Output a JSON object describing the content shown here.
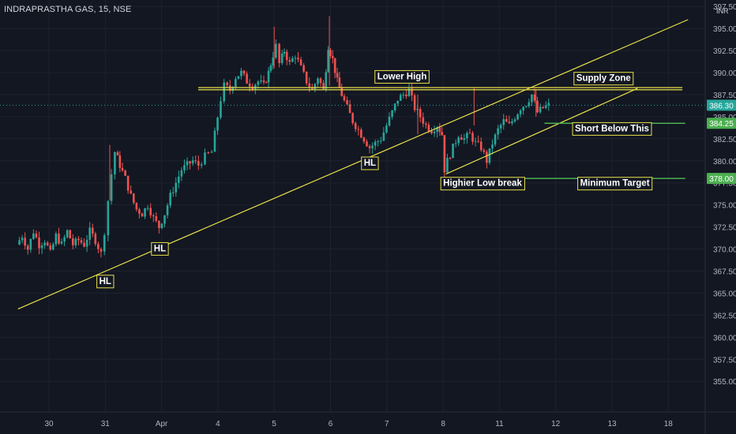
{
  "chart_title": "INDRAPRASTHA GAS, 15, NSE",
  "currency": "INR",
  "chart_data": {
    "type": "candlestick",
    "y_axis": {
      "min": 353.5,
      "max": 397.6,
      "ticks": [
        "355.00",
        "357.50",
        "360.00",
        "362.50",
        "365.00",
        "367.50",
        "370.00",
        "372.50",
        "375.00",
        "377.50",
        "380.00",
        "382.50",
        "385.00",
        "387.50",
        "390.00",
        "392.50",
        "395.00",
        "397.50"
      ]
    },
    "x_axis": {
      "ticks": [
        {
          "label": "30",
          "t": 0.5
        },
        {
          "label": "31",
          "t": 1.5
        },
        {
          "label": "Apr",
          "t": 2.5
        },
        {
          "label": "4",
          "t": 3.5
        },
        {
          "label": "5",
          "t": 4.5
        },
        {
          "label": "6",
          "t": 5.5
        },
        {
          "label": "7",
          "t": 6.5
        },
        {
          "label": "8",
          "t": 7.5
        },
        {
          "label": "11",
          "t": 8.5
        },
        {
          "label": "12",
          "t": 9.5
        },
        {
          "label": "13",
          "t": 10.5
        },
        {
          "label": "18",
          "t": 11.5
        }
      ]
    },
    "up_color": "#26a69a",
    "down_color": "#ef5350",
    "price_badges": [
      {
        "value": 386.3,
        "label": "386.30",
        "color": "#26a69a"
      },
      {
        "value": 384.25,
        "label": "384.25",
        "color": "#4caf50"
      },
      {
        "value": 378.0,
        "label": "378.00",
        "color": "#4caf50"
      }
    ],
    "close_price": 386.3,
    "candle_path": [
      [
        -0.05,
        370.5
      ],
      [
        0.05,
        371.5
      ],
      [
        0.15,
        370
      ],
      [
        0.25,
        372
      ],
      [
        0.35,
        370.5
      ],
      [
        0.45,
        371
      ],
      [
        0.55,
        369.5
      ],
      [
        0.65,
        371.5
      ],
      [
        0.75,
        370.5
      ],
      [
        0.85,
        372
      ],
      [
        0.95,
        370.5
      ],
      [
        1.05,
        371
      ],
      [
        1.15,
        370.5
      ],
      [
        1.25,
        372
      ],
      [
        1.35,
        371
      ],
      [
        1.45,
        369.5
      ],
      [
        1.52,
        372
      ],
      [
        1.58,
        375.5
      ],
      [
        1.64,
        378.5
      ],
      [
        1.7,
        381
      ],
      [
        1.78,
        379.5
      ],
      [
        1.88,
        378
      ],
      [
        1.98,
        376
      ],
      [
        2.08,
        374.5
      ],
      [
        2.18,
        374
      ],
      [
        2.28,
        375
      ],
      [
        2.38,
        373.5
      ],
      [
        2.48,
        372.5
      ],
      [
        2.58,
        374
      ],
      [
        2.68,
        376
      ],
      [
        2.78,
        377.5
      ],
      [
        2.88,
        379
      ],
      [
        2.98,
        379.5
      ],
      [
        3.08,
        380
      ],
      [
        3.18,
        379.5
      ],
      [
        3.3,
        380.5
      ],
      [
        3.42,
        381
      ],
      [
        3.52,
        385
      ],
      [
        3.58,
        387
      ],
      [
        3.64,
        388.5
      ],
      [
        3.74,
        388
      ],
      [
        3.84,
        389.5
      ],
      [
        3.94,
        390
      ],
      [
        4.04,
        389
      ],
      [
        4.14,
        388.5
      ],
      [
        4.24,
        389
      ],
      [
        4.34,
        388.5
      ],
      [
        4.42,
        390
      ],
      [
        4.5,
        392
      ],
      [
        4.56,
        393
      ],
      [
        4.62,
        391
      ],
      [
        4.7,
        392.5
      ],
      [
        4.8,
        391
      ],
      [
        4.9,
        392
      ],
      [
        5.0,
        390.5
      ],
      [
        5.1,
        389
      ],
      [
        5.2,
        388
      ],
      [
        5.3,
        389.5
      ],
      [
        5.4,
        388
      ],
      [
        5.48,
        393
      ],
      [
        5.56,
        391.5
      ],
      [
        5.64,
        389
      ],
      [
        5.72,
        387.5
      ],
      [
        5.82,
        386
      ],
      [
        5.92,
        384.5
      ],
      [
        6.02,
        383.5
      ],
      [
        6.12,
        382.5
      ],
      [
        6.22,
        381.5
      ],
      [
        6.32,
        382
      ],
      [
        6.42,
        382.5
      ],
      [
        6.52,
        384
      ],
      [
        6.62,
        385.5
      ],
      [
        6.72,
        387
      ],
      [
        6.82,
        387.5
      ],
      [
        6.92,
        388
      ],
      [
        7.02,
        386
      ],
      [
        7.12,
        385
      ],
      [
        7.22,
        384
      ],
      [
        7.32,
        383.5
      ],
      [
        7.42,
        384
      ],
      [
        7.5,
        383
      ],
      [
        7.55,
        379
      ],
      [
        7.6,
        380
      ],
      [
        7.7,
        381.5
      ],
      [
        7.8,
        383
      ],
      [
        7.9,
        382.5
      ],
      [
        8.0,
        383
      ],
      [
        8.1,
        382
      ],
      [
        8.2,
        381.5
      ],
      [
        8.3,
        380
      ],
      [
        8.4,
        382
      ],
      [
        8.5,
        383.5
      ],
      [
        8.6,
        384.5
      ],
      [
        8.7,
        384
      ],
      [
        8.8,
        385
      ],
      [
        8.9,
        386
      ],
      [
        9.0,
        386.5
      ],
      [
        9.1,
        387.5
      ],
      [
        9.2,
        385.5
      ],
      [
        9.3,
        386
      ],
      [
        9.4,
        386.3
      ]
    ],
    "drawings": {
      "trendlines": [
        {
          "from": [
            -0.05,
            363.2
          ],
          "to": [
            11.85,
            396.0
          ],
          "color": "#e8e04a"
        },
        {
          "from": [
            7.55,
            378.5
          ],
          "to": [
            10.95,
            388.2
          ],
          "color": "#e8e04a"
        },
        {
          "from": [
            3.15,
            388.3
          ],
          "to": [
            11.75,
            388.3
          ],
          "color": "#e8e04a"
        },
        {
          "from": [
            3.15,
            388.05
          ],
          "to": [
            11.75,
            388.05
          ],
          "color": "#e8e04a"
        }
      ],
      "hlines": [
        {
          "from": [
            9.3,
            384.25
          ],
          "to": [
            11.8,
            384.25
          ],
          "color": "#4caf50"
        },
        {
          "from": [
            8.0,
            378.0
          ],
          "to": [
            11.8,
            378.0
          ],
          "color": "#4caf50"
        }
      ]
    },
    "annotations": [
      {
        "text": "HL",
        "t": 1.5,
        "price": 366.4
      },
      {
        "text": "HL",
        "t": 2.47,
        "price": 370.1
      },
      {
        "text": "HL",
        "t": 6.2,
        "price": 379.8
      },
      {
        "text": "Lower High",
        "t": 6.77,
        "price": 389.6
      },
      {
        "text": "Supply Zone",
        "t": 10.35,
        "price": 389.4
      },
      {
        "text": "Short Below This",
        "t": 10.5,
        "price": 383.7
      },
      {
        "text": "Highier Low break",
        "t": 8.2,
        "price": 377.5
      },
      {
        "text": "Minimum Target",
        "t": 10.55,
        "price": 377.5
      }
    ]
  }
}
